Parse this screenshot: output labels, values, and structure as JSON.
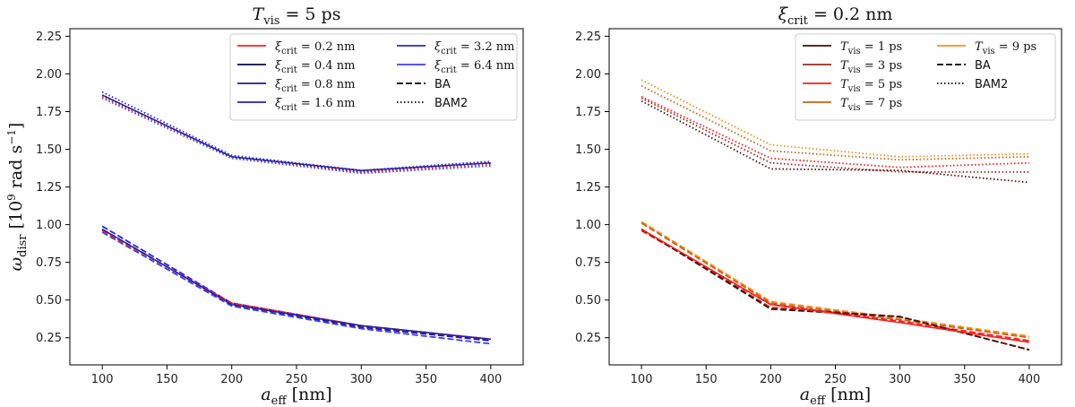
{
  "chart_data": [
    {
      "type": "line",
      "title_main": "T",
      "title_sub": "vis",
      "title_rest": " = 5 ps",
      "xlabel_main": "a",
      "xlabel_sub": "eff",
      "xlabel_rest": " [nm]",
      "ylabel_main": "ω",
      "ylabel_sub": "disr",
      "ylabel_rest": " [10",
      "ylabel_sup": "9",
      "ylabel_end": " rad s",
      "ylabel_sup2": "−1",
      "ylabel_close": "]",
      "x": [
        100,
        200,
        300,
        400
      ],
      "xlim": [
        75,
        425
      ],
      "ylim": [
        0.07,
        2.3
      ],
      "xticks": [
        "100",
        "150",
        "200",
        "250",
        "300",
        "350",
        "400"
      ],
      "yticks": [
        "0.25",
        "0.50",
        "0.75",
        "1.00",
        "1.25",
        "1.50",
        "1.75",
        "2.00",
        "2.25"
      ],
      "legend_position": "top-right",
      "legend": [
        {
          "main": "ξ",
          "sub": "crit",
          "rest": " = 0.2 nm",
          "color": "#ff1a1a",
          "style": "solid"
        },
        {
          "main": "ξ",
          "sub": "crit",
          "rest": " = 0.4 nm",
          "color": "#0a0a4a",
          "style": "solid"
        },
        {
          "main": "ξ",
          "sub": "crit",
          "rest": " = 0.8 nm",
          "color": "#1c1c8e",
          "style": "solid"
        },
        {
          "main": "ξ",
          "sub": "crit",
          "rest": " = 1.6 nm",
          "color": "#2222aa",
          "style": "solid"
        },
        {
          "main": "ξ",
          "sub": "crit",
          "rest": " = 3.2 nm",
          "color": "#2a2ac8",
          "style": "solid"
        },
        {
          "main": "ξ",
          "sub": "crit",
          "rest": " = 6.4 nm",
          "color": "#3b3bff",
          "style": "solid"
        },
        {
          "label": "BA",
          "color": "#000000",
          "style": "dashed"
        },
        {
          "label": "BAM2",
          "color": "#000000",
          "style": "dotted"
        }
      ],
      "series": [
        {
          "color": "#2a2ac8",
          "style": "dotted",
          "values": [
            1.88,
            1.46,
            1.36,
            1.42
          ]
        },
        {
          "color": "#1c1c8e",
          "style": "dotted",
          "values": [
            1.86,
            1.45,
            1.35,
            1.41
          ]
        },
        {
          "color": "#ff1a1a",
          "style": "dotted",
          "values": [
            1.85,
            1.45,
            1.35,
            1.4
          ]
        },
        {
          "color": "#3b3bff",
          "style": "dotted",
          "values": [
            1.84,
            1.44,
            1.34,
            1.39
          ]
        },
        {
          "color": "#2222aa",
          "style": "solid",
          "values": [
            1.86,
            1.45,
            1.36,
            1.41
          ]
        },
        {
          "color": "#2a2ac8",
          "style": "dashed",
          "values": [
            0.99,
            0.48,
            0.33,
            0.24
          ]
        },
        {
          "color": "#1c1c8e",
          "style": "dashed",
          "values": [
            0.97,
            0.47,
            0.32,
            0.23
          ]
        },
        {
          "color": "#3b3bff",
          "style": "dashed",
          "values": [
            0.95,
            0.46,
            0.31,
            0.21
          ]
        },
        {
          "color": "#ff1a1a",
          "style": "dashed",
          "values": [
            0.96,
            0.48,
            0.33,
            0.24
          ]
        },
        {
          "color": "#2222aa",
          "style": "solid",
          "values": [
            0.97,
            0.47,
            0.33,
            0.24
          ]
        }
      ]
    },
    {
      "type": "line",
      "title_main": "ξ",
      "title_sub": "crit",
      "title_rest": " = 0.2 nm",
      "xlabel_main": "a",
      "xlabel_sub": "eff",
      "xlabel_rest": " [nm]",
      "x": [
        100,
        200,
        300,
        400
      ],
      "xlim": [
        75,
        425
      ],
      "ylim": [
        0.07,
        2.3
      ],
      "xticks": [
        "100",
        "150",
        "200",
        "250",
        "300",
        "350",
        "400"
      ],
      "yticks": [
        "0.25",
        "0.50",
        "0.75",
        "1.00",
        "1.25",
        "1.50",
        "1.75",
        "2.00",
        "2.25"
      ],
      "legend_position": "top-right",
      "legend": [
        {
          "main": "T",
          "sub": "vis",
          "rest": " = 1 ps",
          "color": "#4a0d0d",
          "style": "solid"
        },
        {
          "main": "T",
          "sub": "vis",
          "rest": " = 3 ps",
          "color": "#a0281c",
          "style": "solid"
        },
        {
          "main": "T",
          "sub": "vis",
          "rest": " = 5 ps",
          "color": "#ff1a1a",
          "style": "solid"
        },
        {
          "main": "T",
          "sub": "vis",
          "rest": " = 7 ps",
          "color": "#c86414",
          "style": "solid"
        },
        {
          "main": "T",
          "sub": "vis",
          "rest": " = 9 ps",
          "color": "#f2901e",
          "style": "solid"
        },
        {
          "label": "BA",
          "color": "#000000",
          "style": "dashed"
        },
        {
          "label": "BAM2",
          "color": "#000000",
          "style": "dotted"
        }
      ],
      "series": [
        {
          "color": "#f2901e",
          "style": "dotted",
          "values": [
            1.96,
            1.53,
            1.45,
            1.47
          ]
        },
        {
          "color": "#c86414",
          "style": "dotted",
          "values": [
            1.92,
            1.49,
            1.43,
            1.45
          ]
        },
        {
          "color": "#ff1a1a",
          "style": "dotted",
          "values": [
            1.85,
            1.44,
            1.38,
            1.41
          ]
        },
        {
          "color": "#a0281c",
          "style": "dotted",
          "values": [
            1.84,
            1.41,
            1.35,
            1.35
          ]
        },
        {
          "color": "#4a0d0d",
          "style": "dotted",
          "values": [
            1.82,
            1.37,
            1.36,
            1.28
          ]
        },
        {
          "color": "#f2901e",
          "style": "dashed",
          "values": [
            1.02,
            0.49,
            0.38,
            0.26
          ]
        },
        {
          "color": "#c86414",
          "style": "dashed",
          "values": [
            1.01,
            0.48,
            0.37,
            0.25
          ]
        },
        {
          "color": "#ff1a1a",
          "style": "dashed",
          "values": [
            0.96,
            0.47,
            0.36,
            0.23
          ]
        },
        {
          "color": "#a0281c",
          "style": "dashed",
          "values": [
            0.97,
            0.45,
            0.39,
            0.17
          ]
        },
        {
          "color": "#4a0d0d",
          "style": "dashed",
          "values": [
            0.97,
            0.44,
            0.39,
            0.17
          ]
        },
        {
          "color": "#ff1a1a",
          "style": "solid",
          "values": [
            0.97,
            0.47,
            0.35,
            0.22
          ]
        }
      ]
    }
  ]
}
